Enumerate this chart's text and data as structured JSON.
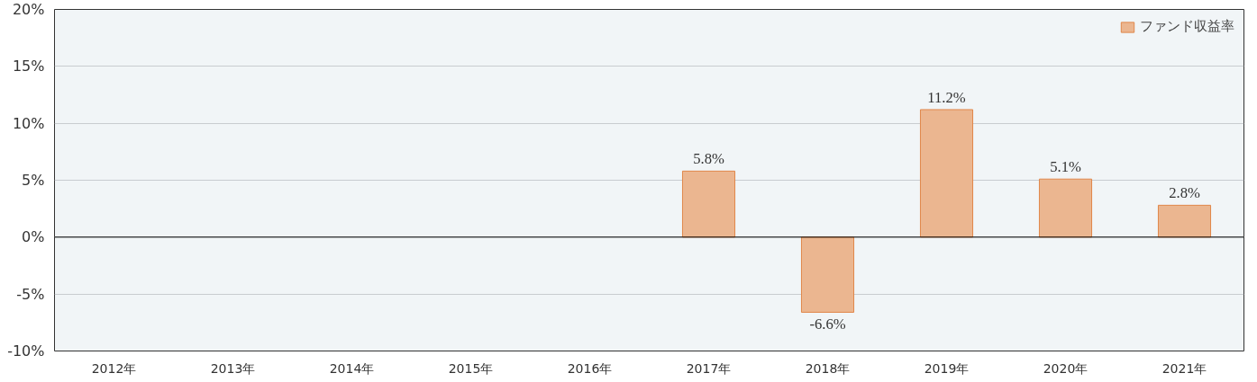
{
  "chart_data": {
    "type": "bar",
    "categories": [
      "2012年",
      "2013年",
      "2014年",
      "2015年",
      "2016年",
      "2017年",
      "2018年",
      "2019年",
      "2020年",
      "2021年"
    ],
    "series": [
      {
        "name": "ファンド収益率",
        "color": "#ebb690",
        "values": [
          null,
          null,
          null,
          null,
          null,
          5.8,
          -6.6,
          11.2,
          5.1,
          2.8
        ],
        "value_labels": [
          null,
          null,
          null,
          null,
          null,
          "5.8%",
          "-6.6%",
          "11.2%",
          "5.1%",
          "2.8%"
        ]
      }
    ],
    "ylim": [
      -10,
      20
    ],
    "yticks": [
      {
        "value": -10,
        "label": "-10%"
      },
      {
        "value": -5,
        "label": "-5%"
      },
      {
        "value": 0,
        "label": "0%"
      },
      {
        "value": 5,
        "label": "5%"
      },
      {
        "value": 10,
        "label": "10%"
      },
      {
        "value": 15,
        "label": "15%"
      },
      {
        "value": 20,
        "label": "20%"
      }
    ],
    "grid": "y",
    "legend": "top right",
    "ref_lines": [
      {
        "axis": "y",
        "value": 0,
        "color": "#000000"
      }
    ]
  }
}
